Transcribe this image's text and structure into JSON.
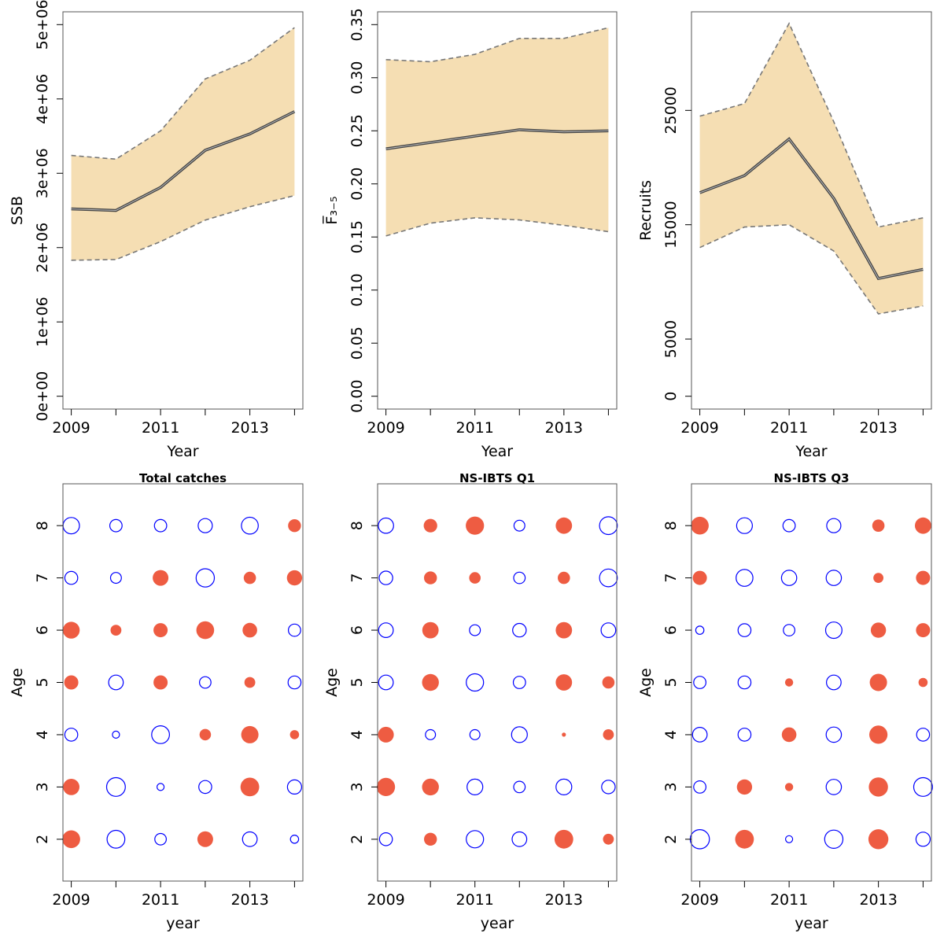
{
  "colors": {
    "band": "#f5deb3",
    "band_edge": "#777777",
    "line": "#444444",
    "positive": "#ee5c42",
    "negative": "#0000ff",
    "axis": "#555555"
  },
  "chart_data": [
    {
      "type": "area",
      "xlabel": "Year",
      "ylabel": "SSB",
      "x_ticks": [
        2009,
        2011,
        2013
      ],
      "y_tick_labels": [
        "0e+00",
        "1e+06",
        "2e+06",
        "3e+06",
        "4e+06",
        "5e+06"
      ],
      "y_ticks": [
        0,
        1000000,
        2000000,
        3000000,
        4000000,
        5000000
      ],
      "xlim": [
        2009,
        2014
      ],
      "ylim": [
        0,
        5000000
      ],
      "x": [
        2009,
        2010,
        2011,
        2012,
        2013,
        2014
      ],
      "estimate": [
        2520000,
        2500000,
        2810000,
        3310000,
        3530000,
        3830000
      ],
      "lower": [
        1830000,
        1840000,
        2080000,
        2370000,
        2550000,
        2700000
      ],
      "upper": [
        3240000,
        3190000,
        3570000,
        4270000,
        4520000,
        4960000
      ]
    },
    {
      "type": "area",
      "xlabel": "Year",
      "ylabel": "F̅₃₋₅",
      "x_ticks": [
        2009,
        2011,
        2013
      ],
      "y_tick_labels": [
        "0.00",
        "0.05",
        "0.10",
        "0.15",
        "0.20",
        "0.25",
        "0.30",
        "0.35"
      ],
      "y_ticks": [
        0,
        0.05,
        0.1,
        0.15,
        0.2,
        0.25,
        0.3,
        0.35
      ],
      "xlim": [
        2009,
        2014
      ],
      "ylim": [
        0,
        0.35
      ],
      "x": [
        2009,
        2010,
        2011,
        2012,
        2013,
        2014
      ],
      "estimate": [
        0.233,
        0.239,
        0.245,
        0.251,
        0.249,
        0.25
      ],
      "lower": [
        0.151,
        0.163,
        0.168,
        0.166,
        0.161,
        0.155
      ],
      "upper": [
        0.317,
        0.315,
        0.322,
        0.337,
        0.337,
        0.347
      ]
    },
    {
      "type": "area",
      "xlabel": "Year",
      "ylabel": "Recruits",
      "x_ticks": [
        2009,
        2011,
        2013
      ],
      "y_tick_labels": [
        "0",
        "5000",
        "15000",
        "25000"
      ],
      "y_ticks": [
        0,
        5000,
        15000,
        25000
      ],
      "xlim": [
        2009,
        2014
      ],
      "ylim": [
        0,
        32500
      ],
      "x": [
        2009,
        2010,
        2011,
        2012,
        2013,
        2014
      ],
      "estimate": [
        17800,
        19300,
        22500,
        17300,
        10300,
        11100
      ],
      "lower": [
        13000,
        14800,
        15000,
        12700,
        7200,
        7900
      ],
      "upper": [
        24500,
        25600,
        32600,
        24000,
        14800,
        15600
      ]
    },
    {
      "type": "scatter",
      "title": "Total catches",
      "xlabel": "year",
      "ylabel": "Age",
      "x_ticks": [
        2009,
        2011,
        2013
      ],
      "y_ticks": [
        2,
        3,
        4,
        5,
        6,
        7,
        8
      ],
      "years": [
        2009,
        2010,
        2011,
        2012,
        2013,
        2014
      ],
      "ages": [
        2,
        3,
        4,
        5,
        6,
        7,
        8
      ],
      "residuals": [
        [
          1.9,
          -1.9,
          -0.8,
          1.5,
          -1.3,
          -0.4
        ],
        [
          1.6,
          -2.1,
          -0.3,
          -1.0,
          2.1,
          -1.2
        ],
        [
          -1.0,
          -0.3,
          -1.9,
          0.8,
          1.8,
          0.5
        ],
        [
          1.2,
          -1.3,
          1.2,
          -0.8,
          0.7,
          -1.0
        ],
        [
          1.7,
          0.7,
          1.2,
          1.9,
          1.3,
          -0.9
        ],
        [
          -1.0,
          -0.7,
          1.5,
          -2.0,
          0.9,
          1.4
        ],
        [
          -1.6,
          -0.9,
          -0.9,
          -1.2,
          -1.7,
          1.0
        ]
      ]
    },
    {
      "type": "scatter",
      "title": "NS-IBTS Q1",
      "xlabel": "year",
      "ylabel": "Age",
      "x_ticks": [
        2009,
        2011,
        2013
      ],
      "y_ticks": [
        2,
        3,
        4,
        5,
        6,
        7,
        8
      ],
      "years": [
        2009,
        2010,
        2011,
        2012,
        2013,
        2014
      ],
      "ages": [
        2,
        3,
        4,
        5,
        6,
        7,
        8
      ],
      "residuals": [
        [
          -1.0,
          1.0,
          -1.8,
          -1.3,
          2.1,
          0.7
        ],
        [
          2.0,
          1.7,
          -1.5,
          -0.8,
          -1.5,
          -1.1
        ],
        [
          1.5,
          -0.6,
          -0.6,
          -1.5,
          0.1,
          0.7
        ],
        [
          -1.3,
          1.7,
          -1.8,
          -0.9,
          1.6,
          0.9
        ],
        [
          -1.3,
          1.6,
          -0.7,
          -1.1,
          1.6,
          -1.3
        ],
        [
          -1.1,
          1.0,
          0.8,
          -0.8,
          0.9,
          -1.9
        ],
        [
          -1.4,
          1.1,
          2.0,
          -0.7,
          1.6,
          -1.9
        ]
      ]
    },
    {
      "type": "scatter",
      "title": "NS-IBTS Q3",
      "xlabel": "year",
      "ylabel": "Age",
      "x_ticks": [
        2009,
        2011,
        2013
      ],
      "y_ticks": [
        2,
        3,
        4,
        5,
        6,
        7,
        8
      ],
      "years": [
        2009,
        2010,
        2011,
        2012,
        2013,
        2014
      ],
      "ages": [
        2,
        3,
        4,
        5,
        6,
        7,
        8
      ],
      "residuals": [
        [
          -2.2,
          2.1,
          -0.3,
          -2.0,
          2.4,
          -1.2
        ],
        [
          -0.9,
          1.4,
          0.4,
          -1.4,
          2.2,
          -2.1
        ],
        [
          -1.3,
          -1.0,
          1.3,
          -1.4,
          2.0,
          -1.0
        ],
        [
          -0.9,
          -1.0,
          0.4,
          -1.3,
          1.8,
          0.5
        ],
        [
          -0.4,
          -1.0,
          -0.8,
          -1.6,
          1.4,
          1.2
        ],
        [
          1.2,
          -1.7,
          -1.4,
          -1.4,
          0.6,
          1.2
        ],
        [
          1.9,
          -1.5,
          -0.9,
          -1.2,
          0.9,
          1.6
        ]
      ]
    }
  ]
}
